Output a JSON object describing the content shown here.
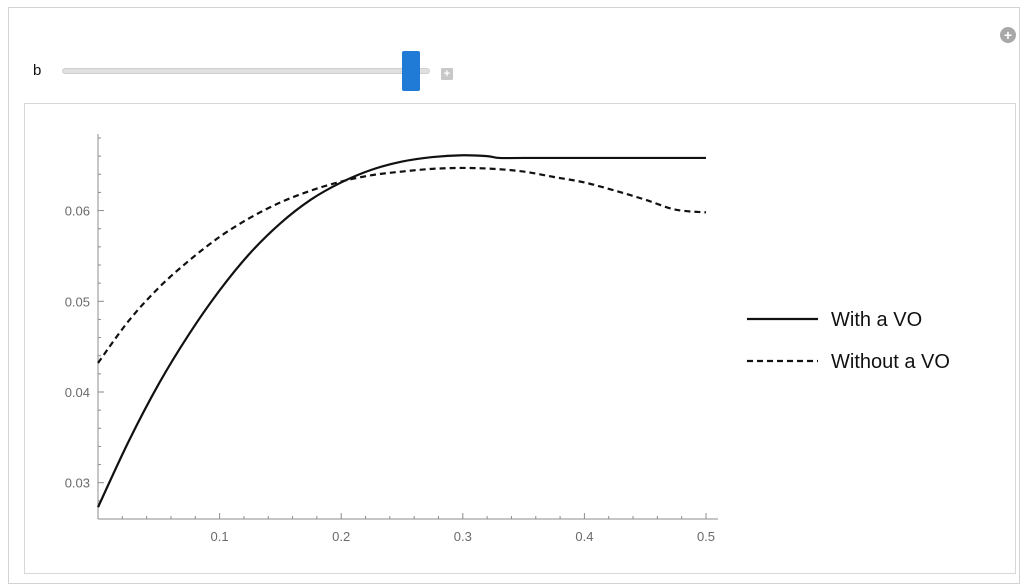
{
  "controls": {
    "parameter_label": "b",
    "slider_value_fraction": 0.97,
    "plus_circle_icon": "plus-circle-icon",
    "increment_icon": "plus-square-icon"
  },
  "chart_data": {
    "type": "line",
    "title": "",
    "xlabel": "",
    "ylabel": "",
    "xlim": [
      0,
      0.5
    ],
    "ylim": [
      0.026,
      0.068
    ],
    "x_ticks": [
      0.1,
      0.2,
      0.3,
      0.4,
      0.5
    ],
    "x_tick_labels": [
      "0.1",
      "0.2",
      "0.3",
      "0.4",
      "0.5"
    ],
    "y_ticks": [
      0.03,
      0.04,
      0.05,
      0.06
    ],
    "y_tick_labels": [
      "0.03",
      "0.04",
      "0.05",
      "0.06"
    ],
    "grid": false,
    "legend_position": "right",
    "series": [
      {
        "name": "With a VO",
        "style": "solid",
        "color": "#111111",
        "x": [
          0.0,
          0.025,
          0.05,
          0.075,
          0.1,
          0.125,
          0.15,
          0.175,
          0.2,
          0.225,
          0.25,
          0.275,
          0.3,
          0.32,
          0.33,
          0.35,
          0.4,
          0.45,
          0.5
        ],
        "y": [
          0.0273,
          0.0345,
          0.0409,
          0.0464,
          0.0512,
          0.0553,
          0.0586,
          0.0612,
          0.0631,
          0.0645,
          0.0654,
          0.0659,
          0.0661,
          0.066,
          0.0658,
          0.0658,
          0.0658,
          0.0658,
          0.0658
        ]
      },
      {
        "name": "Without a VO",
        "style": "dashed",
        "color": "#111111",
        "x": [
          0.0,
          0.025,
          0.05,
          0.075,
          0.1,
          0.125,
          0.15,
          0.175,
          0.2,
          0.225,
          0.25,
          0.275,
          0.3,
          0.325,
          0.35,
          0.375,
          0.4,
          0.425,
          0.45,
          0.475,
          0.5
        ],
        "y": [
          0.0432,
          0.0478,
          0.0515,
          0.0545,
          0.0571,
          0.0592,
          0.0609,
          0.0622,
          0.0632,
          0.0639,
          0.0643,
          0.0646,
          0.0647,
          0.0646,
          0.0643,
          0.0637,
          0.0631,
          0.0622,
          0.0612,
          0.0601,
          0.0598
        ]
      }
    ]
  }
}
